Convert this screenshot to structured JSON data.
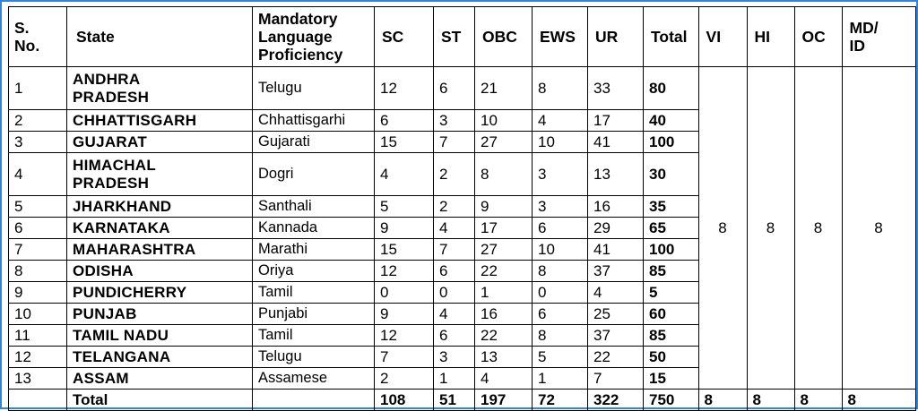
{
  "table": {
    "headers": {
      "sno": "S. No.",
      "state": "State",
      "language": "Mandatory Language Proficiency",
      "sc": "SC",
      "st": "ST",
      "obc": "OBC",
      "ews": "EWS",
      "ur": "UR",
      "total": "Total",
      "vi": "VI",
      "hi": "HI",
      "oc": "OC",
      "mdid": "MD/ ID"
    },
    "rows": [
      {
        "sno": "1",
        "state": "ANDHRA PRADESH",
        "language": "Telugu",
        "sc": "12",
        "st": "6",
        "obc": "21",
        "ews": "8",
        "ur": "33",
        "total": "80"
      },
      {
        "sno": "2",
        "state": "CHHATTISGARH",
        "language": "Chhattisgarhi",
        "sc": "6",
        "st": "3",
        "obc": "10",
        "ews": "4",
        "ur": "17",
        "total": "40"
      },
      {
        "sno": "3",
        "state": "GUJARAT",
        "language": "Gujarati",
        "sc": "15",
        "st": "7",
        "obc": "27",
        "ews": "10",
        "ur": "41",
        "total": "100"
      },
      {
        "sno": "4",
        "state": "HIMACHAL PRADESH",
        "language": "Dogri",
        "sc": "4",
        "st": "2",
        "obc": "8",
        "ews": "3",
        "ur": "13",
        "total": "30"
      },
      {
        "sno": "5",
        "state": "JHARKHAND",
        "language": "Santhali",
        "sc": "5",
        "st": "2",
        "obc": "9",
        "ews": "3",
        "ur": "16",
        "total": "35"
      },
      {
        "sno": "6",
        "state": "KARNATAKA",
        "language": "Kannada",
        "sc": "9",
        "st": "4",
        "obc": "17",
        "ews": "6",
        "ur": "29",
        "total": "65"
      },
      {
        "sno": "7",
        "state": "MAHARASHTRA",
        "language": "Marathi",
        "sc": "15",
        "st": "7",
        "obc": "27",
        "ews": "10",
        "ur": "41",
        "total": "100"
      },
      {
        "sno": "8",
        "state": "ODISHA",
        "language": "Oriya",
        "sc": "12",
        "st": "6",
        "obc": "22",
        "ews": "8",
        "ur": "37",
        "total": "85"
      },
      {
        "sno": "9",
        "state": "PUNDICHERRY",
        "language": "Tamil",
        "sc": "0",
        "st": "0",
        "obc": "1",
        "ews": "0",
        "ur": "4",
        "total": "5"
      },
      {
        "sno": "10",
        "state": "PUNJAB",
        "language": "Punjabi",
        "sc": "9",
        "st": "4",
        "obc": "16",
        "ews": "6",
        "ur": "25",
        "total": "60"
      },
      {
        "sno": "11",
        "state": "TAMIL NADU",
        "language": "Tamil",
        "sc": "12",
        "st": "6",
        "obc": "22",
        "ews": "8",
        "ur": "37",
        "total": "85"
      },
      {
        "sno": "12",
        "state": "TELANGANA",
        "language": "Telugu",
        "sc": "7",
        "st": "3",
        "obc": "13",
        "ews": "5",
        "ur": "22",
        "total": "50"
      },
      {
        "sno": "13",
        "state": "ASSAM",
        "language": "Assamese",
        "sc": "2",
        "st": "1",
        "obc": "4",
        "ews": "1",
        "ur": "7",
        "total": "15"
      }
    ],
    "pwd_merged": {
      "vi": "8",
      "hi": "8",
      "oc": "8",
      "mdid": "8"
    },
    "total_row": {
      "label": "Total",
      "sc": "108",
      "st": "51",
      "obc": "197",
      "ews": "72",
      "ur": "322",
      "total": "750",
      "vi": "8",
      "hi": "8",
      "oc": "8",
      "mdid": "8"
    }
  }
}
